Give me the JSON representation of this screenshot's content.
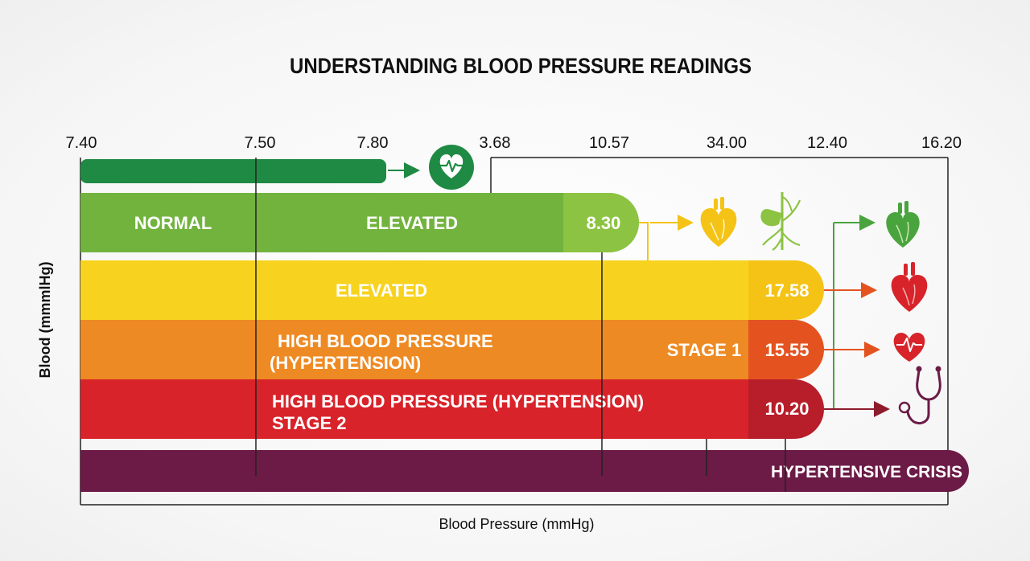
{
  "chart_data": {
    "type": "bar",
    "title": "UNDERSTANDING BLOOD PRESSURE READINGS",
    "xlabel": "Blood Pressure (mmHg)",
    "ylabel": "Blood (mmmlHg)",
    "tick_labels": [
      "7.40",
      "7.50",
      "7.80",
      "3.68",
      "10.57",
      "34.00",
      "12.40",
      "16.20"
    ],
    "bands": [
      {
        "label": "",
        "value_label": "",
        "color": "#1f8a43"
      },
      {
        "label": "NORMAL",
        "label2": "ELEVATED",
        "value_label": "8.30",
        "color": "#72b33e",
        "end_color": "#8cc342"
      },
      {
        "label": "ELEVATED",
        "value_label": "17.58",
        "color": "#f7d31f",
        "end_color": "#f5c316"
      },
      {
        "label": "HIGH BLOOD PRESSURE",
        "label_line2": "(HYPERTENSION)",
        "label2": "STAGE 1",
        "value_label": "15.55",
        "color": "#ee8a23",
        "end_color": "#e4531f"
      },
      {
        "label": "HIGH BLOOD PRESSURE (HYPERTENSION)",
        "label_line2": "STAGE 2",
        "value_label": "10.20",
        "color": "#d8232a",
        "end_color": "#b81d2a"
      },
      {
        "label": "HYPERTENSIVE CRISIS",
        "value_label": "",
        "color": "#6b1b46"
      }
    ],
    "icons": [
      "heart-monitor-icon",
      "heart-yellow-icon",
      "lungs-icon",
      "heart-green-icon",
      "heart-red-icon",
      "heart-pulse-icon",
      "stethoscope-icon"
    ],
    "colors": {
      "arrow_yellow": "#f5c316",
      "arrow_green": "#4aa43e",
      "arrow_orange": "#e4531f",
      "arrow_crimson": "#8e1c2c",
      "axis": "#222222"
    }
  }
}
